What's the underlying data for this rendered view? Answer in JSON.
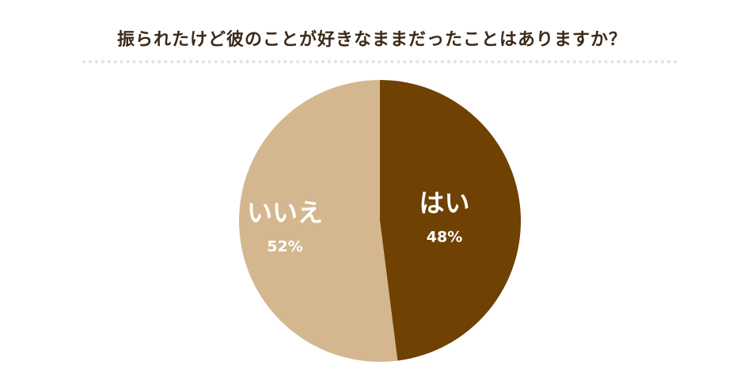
{
  "chart_data": {
    "type": "pie",
    "title": "振られたけど彼のことが好きなままだったことはありますか？",
    "slices": [
      {
        "label": "はい",
        "value": 48,
        "value_label": "48%",
        "color": "#6f4103"
      },
      {
        "label": "いいえ",
        "value": 52,
        "value_label": "52%",
        "color": "#d4b78f"
      }
    ],
    "start": "12 o'clock",
    "direction": "clockwise",
    "legend": "none",
    "labels": "inside slices"
  }
}
